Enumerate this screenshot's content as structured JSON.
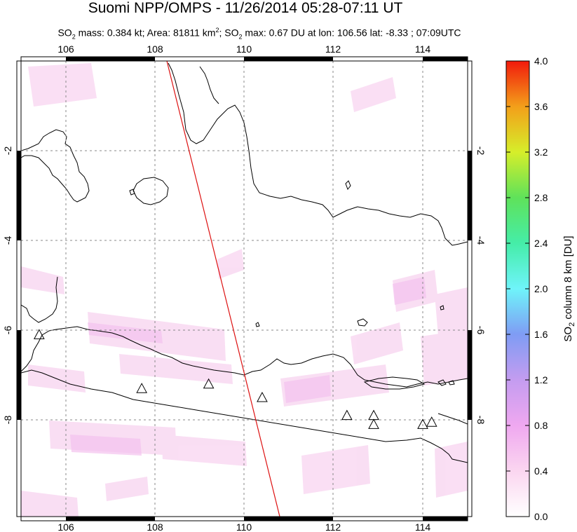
{
  "header": {
    "title": "Suomi NPP/OMPS - 11/26/2014 05:28-07:11 UT",
    "subtitle_parts": {
      "so2_mass_prefix": "SO",
      "so2_mass_sub": "2",
      "so2_mass_text": " mass: 0.384 kt; Area: 81811 km",
      "area_sup": "2",
      "so2_max_prefix": "; SO",
      "so2_max_sub": "2",
      "so2_max_text": " max: 0.67 DU at lon: 106.56 lat: -8.33 ; 07:09UTC"
    }
  },
  "map": {
    "lon_range": [
      105,
      115
    ],
    "lat_range": [
      -10,
      -1
    ],
    "lon_tick_labels": [
      "106",
      "108",
      "110",
      "112",
      "114"
    ],
    "lat_tick_labels": [
      "-2",
      "-4",
      "-6",
      "-8"
    ],
    "volcano_marker": "triangle",
    "volcanoes": [
      {
        "lon": 105.4,
        "lat": -6.1
      },
      {
        "lon": 107.7,
        "lat": -7.3
      },
      {
        "lon": 109.2,
        "lat": -7.2
      },
      {
        "lon": 110.4,
        "lat": -7.5
      },
      {
        "lon": 112.3,
        "lat": -7.9
      },
      {
        "lon": 112.9,
        "lat": -7.9
      },
      {
        "lon": 112.9,
        "lat": -8.1
      },
      {
        "lon": 114.0,
        "lat": -8.1
      },
      {
        "lon": 114.2,
        "lat": -8.05
      }
    ],
    "orbit_track_color": "#dd1111"
  },
  "colorbar": {
    "label": "SO2 column 8 km [DU]",
    "label_prefix": "SO",
    "label_sub": "2",
    "label_suffix": " column 8 km [DU]",
    "min": 0.0,
    "max": 4.0,
    "tick_labels": [
      "4.0",
      "3.6",
      "3.2",
      "2.8",
      "2.4",
      "2.0",
      "1.6",
      "1.2",
      "0.8",
      "0.4",
      "0.0"
    ]
  }
}
